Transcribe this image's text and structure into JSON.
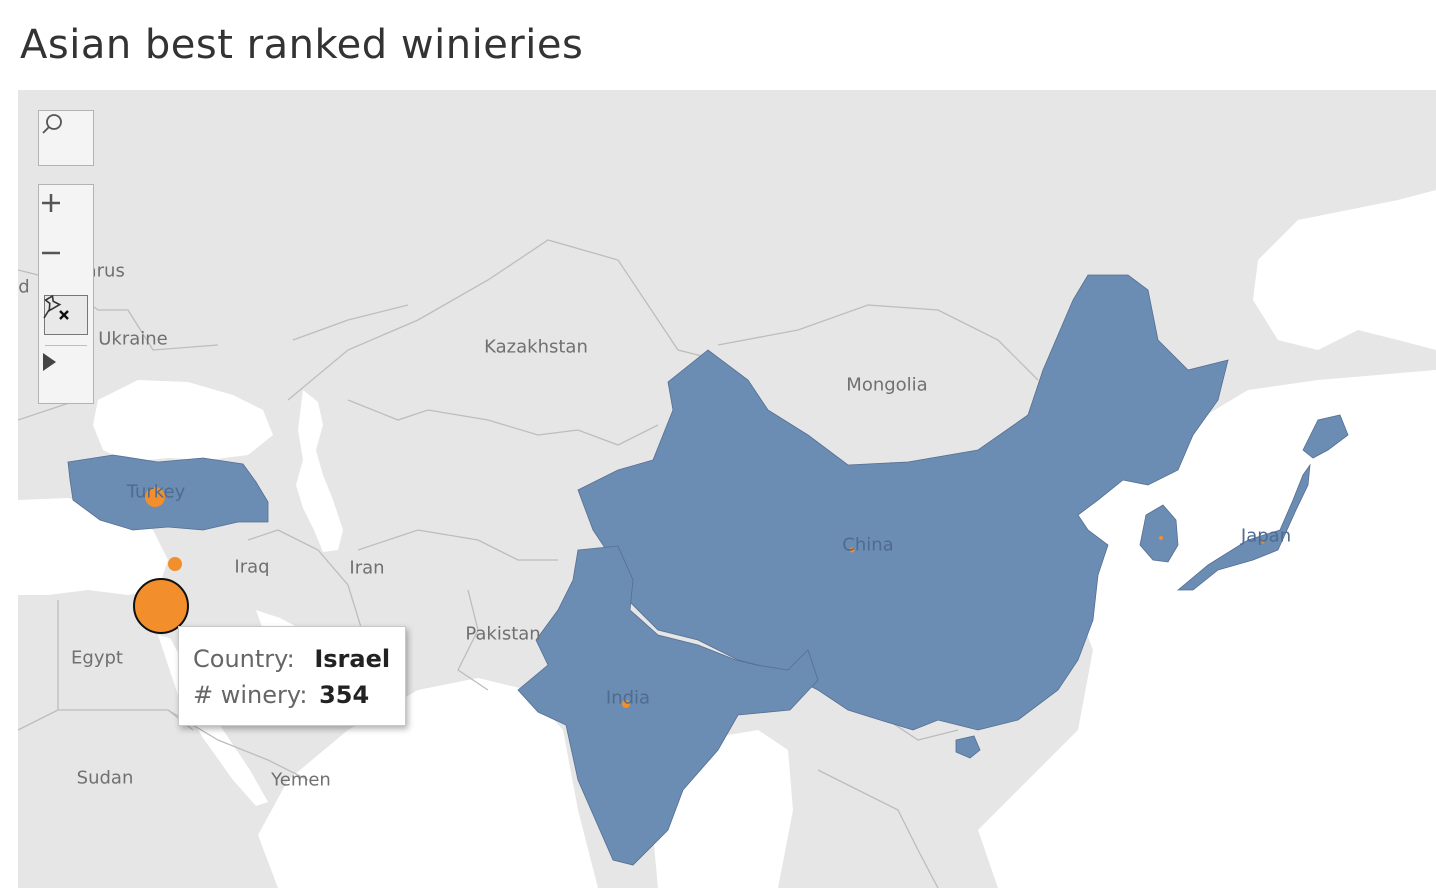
{
  "title": "Asian best ranked winieries",
  "map": {
    "highlight_color": "#6b8cb3",
    "marker_color": "#f28e2b",
    "background_color": "#e6e6e6",
    "water_color": "#ffffff",
    "labels": {
      "belarus": "Belarus",
      "ukraine": "Ukraine",
      "kazakhstan": "Kazakhstan",
      "mongolia": "Mongolia",
      "turkey": "Turkey",
      "iraq": "Iraq",
      "iran": "Iran",
      "china": "China",
      "japan": "Japan",
      "pakistan": "Pakistan",
      "egypt": "Egypt",
      "india": "India",
      "sudan": "Sudan",
      "yemen": "Yemen",
      "edge_d": "d"
    },
    "highlighted_countries": [
      "Turkey",
      "China",
      "India",
      "Japan",
      "South Korea"
    ],
    "markers": [
      {
        "country": "Israel",
        "wineries": 354,
        "selected": true
      },
      {
        "country": "Turkey"
      },
      {
        "country": "Lebanon"
      },
      {
        "country": "China"
      },
      {
        "country": "India"
      },
      {
        "country": "South Korea"
      },
      {
        "country": "Japan"
      }
    ]
  },
  "toolbar": {
    "search_icon": "search-icon",
    "zoom_in_icon": "plus-icon",
    "zoom_out_icon": "minus-icon",
    "pin_icon": "unpin-icon",
    "expand_icon": "play-icon"
  },
  "tooltip": {
    "country_key": "Country:",
    "country_value": "Israel",
    "count_key": "# winery:",
    "count_value": "354"
  }
}
